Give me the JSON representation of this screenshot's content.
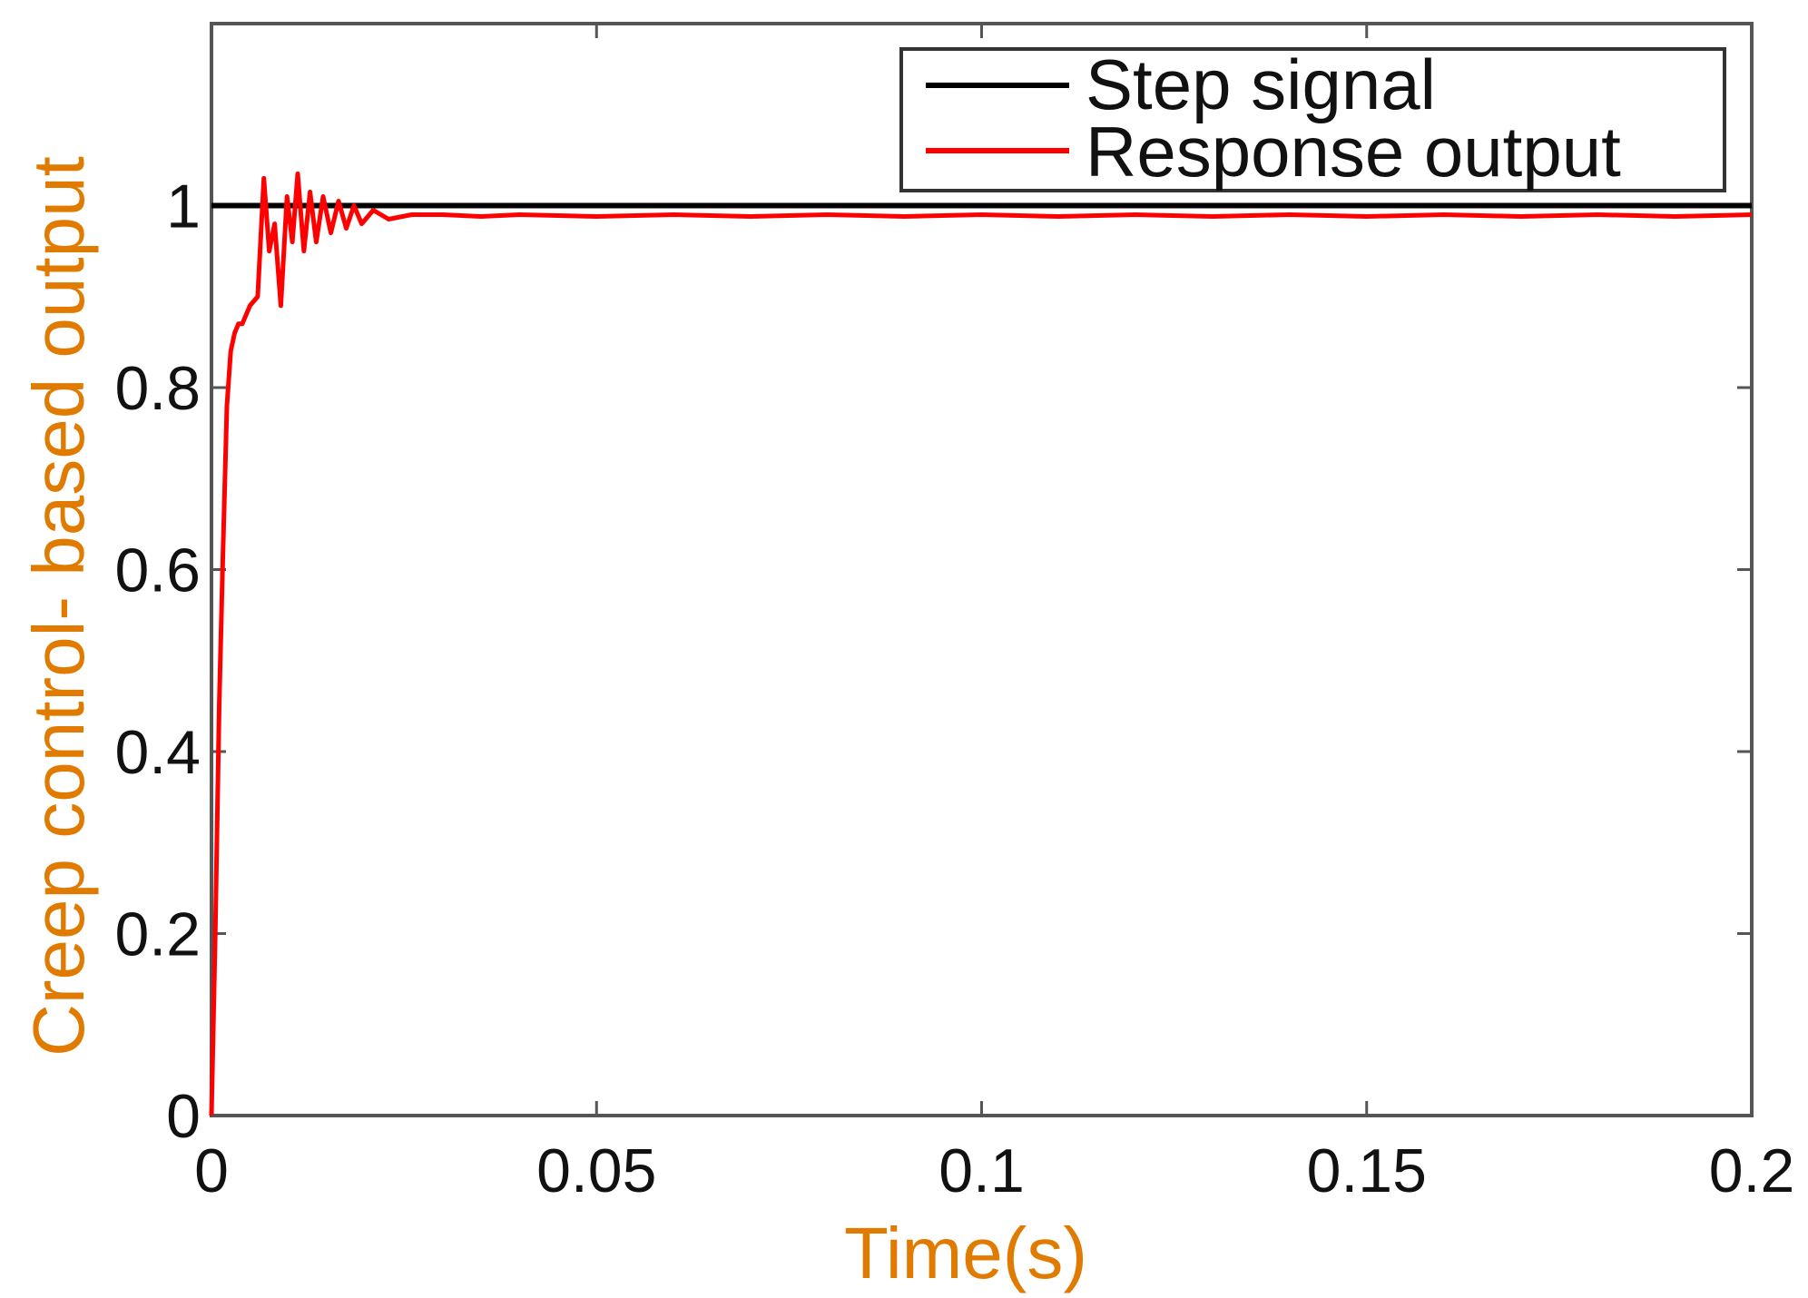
{
  "chart_data": {
    "type": "line",
    "xlabel": "Time(s)",
    "ylabel": "Creep control- based output",
    "xlim": [
      0,
      0.2
    ],
    "ylim": [
      0,
      1.2
    ],
    "x_ticks": [
      0,
      0.05,
      0.1,
      0.15,
      0.2
    ],
    "x_tick_labels": [
      "0",
      "0.05",
      "0.1",
      "0.15",
      "0.2"
    ],
    "y_ticks": [
      0,
      0.2,
      0.4,
      0.6,
      0.8,
      1
    ],
    "y_tick_labels": [
      "0",
      "0.2",
      "0.4",
      "0.6",
      "0.8",
      "1"
    ],
    "grid": false,
    "legend_position": "top-right",
    "axis_label_color": "#e07b00",
    "series": [
      {
        "name": "Step signal",
        "color": "#000000",
        "x": [
          0,
          0.2
        ],
        "y": [
          1,
          1
        ]
      },
      {
        "name": "Response output",
        "color": "#ff0000",
        "x": [
          0,
          0.0005,
          0.001,
          0.0015,
          0.002,
          0.0025,
          0.003,
          0.0035,
          0.004,
          0.005,
          0.006,
          0.0068,
          0.0075,
          0.0082,
          0.009,
          0.0098,
          0.0105,
          0.0112,
          0.012,
          0.0128,
          0.0136,
          0.0145,
          0.0155,
          0.0165,
          0.0175,
          0.0185,
          0.0195,
          0.021,
          0.023,
          0.026,
          0.03,
          0.035,
          0.04,
          0.05,
          0.06,
          0.07,
          0.08,
          0.09,
          0.1,
          0.11,
          0.12,
          0.13,
          0.14,
          0.15,
          0.16,
          0.17,
          0.18,
          0.19,
          0.2
        ],
        "y": [
          0,
          0.2,
          0.45,
          0.62,
          0.78,
          0.84,
          0.86,
          0.87,
          0.87,
          0.89,
          0.9,
          1.03,
          0.95,
          0.98,
          0.89,
          1.01,
          0.96,
          1.035,
          0.95,
          1.015,
          0.96,
          1.01,
          0.97,
          1.005,
          0.975,
          1.0,
          0.98,
          0.995,
          0.985,
          0.99,
          0.99,
          0.988,
          0.99,
          0.988,
          0.99,
          0.988,
          0.99,
          0.988,
          0.99,
          0.988,
          0.99,
          0.988,
          0.99,
          0.988,
          0.99,
          0.988,
          0.99,
          0.988,
          0.99
        ]
      }
    ]
  }
}
